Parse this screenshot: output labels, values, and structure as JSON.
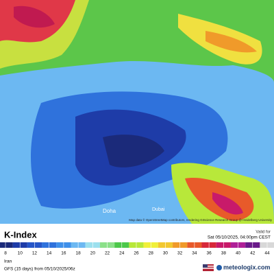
{
  "header": {
    "title": "K-Index",
    "valid_label": "Valid for",
    "valid_time": "Sat 05/10/2025, 04:00pm CEST"
  },
  "map": {
    "attribution": "Map data © OpenStreetMap contributors, rendering GIScience Research Group @ Heidelberg University",
    "places": [
      "Doha",
      "Dubai"
    ]
  },
  "legend": {
    "ticks": [
      8,
      10,
      12,
      14,
      16,
      18,
      20,
      22,
      24,
      26,
      28,
      30,
      32,
      34,
      36,
      38,
      40,
      42,
      44
    ],
    "colors": [
      "#1b2a7a",
      "#1e3ca8",
      "#2656c8",
      "#2f72dc",
      "#3f90ea",
      "#6cb8f2",
      "#9ce0ee",
      "#8ce08a",
      "#4cc84a",
      "#b8e83a",
      "#f0f03a",
      "#f2c830",
      "#f09a2a",
      "#e85a2a",
      "#d8283a",
      "#c81a6a",
      "#b02098",
      "#6a1a8a",
      "#d8d8d8"
    ]
  },
  "footer": {
    "region": "Iran",
    "model": "GFS (15 days) from 05/10/2025/06z",
    "brand": "meteologix.com"
  }
}
